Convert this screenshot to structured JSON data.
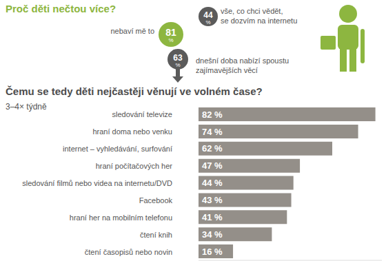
{
  "intro": {
    "title": "Proč děti nečtou více?",
    "unit": "%",
    "items": [
      {
        "value": 81,
        "text": [
          "nebaví mě to"
        ],
        "color": "#8db640"
      },
      {
        "value": 44,
        "text": [
          "vše, co chci vědět,",
          "se dozvím na internetu"
        ],
        "color": "#5b5b5b"
      },
      {
        "value": 63,
        "text": [
          "dnešní doba nabízí spoustu",
          "zajímavějších věcí"
        ],
        "color": "#5b5b5b"
      }
    ]
  },
  "chart_data": {
    "type": "bar",
    "title": "Čemu se tedy děti nejčastěji věnují ve volném čase?",
    "subtitle": "3–4× týdně",
    "categories": [
      "sledování televize",
      "hraní doma nebo venku",
      "internet – vyhledávání, surfování",
      "hraní počítačových her",
      "sledování filmů nebo videa na internetu/DVD",
      "Facebook",
      "hraní her na mobilním telefonu",
      "čtení knih",
      "čtení časopisů nebo novin"
    ],
    "values": [
      82,
      74,
      62,
      47,
      44,
      43,
      41,
      34,
      16
    ],
    "value_labels": [
      "82 %",
      "74 %",
      "62 %",
      "47 %",
      "44 %",
      "43 %",
      "41 %",
      "34 %",
      "16 %"
    ],
    "color": "#948f89",
    "xlim": [
      0,
      85
    ],
    "orientation": "horizontal",
    "data_labels": true,
    "tick_labels": "y"
  }
}
